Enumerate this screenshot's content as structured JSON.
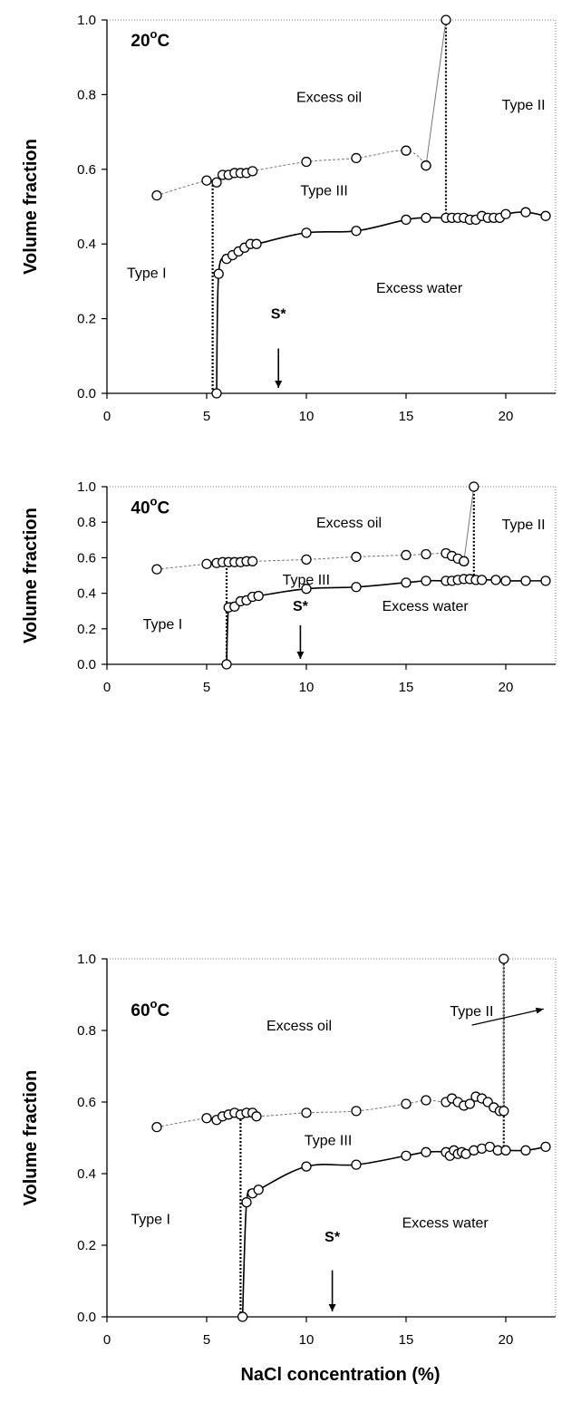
{
  "chart_data": [
    {
      "type": "line",
      "title": "20°C",
      "title_main": "20",
      "title_deg": "o",
      "title_unit": "C",
      "ylabel": "Volume fraction",
      "xlabel": "",
      "xlim": [
        0,
        22.5
      ],
      "ylim": [
        0,
        1.0
      ],
      "xticks": [
        "0",
        "5",
        "10",
        "15",
        "20"
      ],
      "yticks": [
        "0.0",
        "0.2",
        "0.4",
        "0.6",
        "0.8",
        "1.0"
      ],
      "series": [
        {
          "role": "upper",
          "x": [
            2.5,
            5.0,
            5.5,
            5.8,
            6.1,
            6.4,
            6.7,
            7.0,
            7.3,
            10.0,
            12.5,
            15.0,
            16.0
          ],
          "y": [
            0.53,
            0.57,
            0.565,
            0.585,
            0.585,
            0.59,
            0.59,
            0.59,
            0.595,
            0.62,
            0.63,
            0.65,
            0.61
          ]
        },
        {
          "role": "lower",
          "x": [
            5.5,
            5.6,
            6.0,
            6.3,
            6.6,
            6.9,
            7.2,
            7.5,
            10.0,
            12.5,
            15.0,
            16.0,
            17.0,
            17.3,
            17.6,
            17.9,
            18.2,
            18.5,
            18.8,
            19.1,
            19.4,
            19.7,
            20.0,
            21.0,
            22.0
          ],
          "y": [
            0.0,
            0.32,
            0.36,
            0.37,
            0.38,
            0.39,
            0.4,
            0.4,
            0.43,
            0.435,
            0.465,
            0.47,
            0.47,
            0.47,
            0.47,
            0.47,
            0.465,
            0.465,
            0.475,
            0.47,
            0.47,
            0.47,
            0.48,
            0.485,
            0.475
          ]
        },
        {
          "role": "typeII-jump",
          "x": [
            16.0,
            17.0
          ],
          "y": [
            0.61,
            1.0
          ]
        }
      ],
      "boundaries": [
        {
          "x": 5.3,
          "y0": 0.0,
          "y1": 0.57
        },
        {
          "x": 17.0,
          "y0": 0.47,
          "y1": 1.0
        }
      ],
      "labels": {
        "excess_oil": "Excess oil",
        "type_ii": "Type II",
        "type_iii": "Type III",
        "type_i": "Type I",
        "excess_water": "Excess water",
        "s_star": "S*"
      },
      "s_star_x": 8.6
    },
    {
      "type": "line",
      "title": "40°C",
      "title_main": "40",
      "title_deg": "o",
      "title_unit": "C",
      "ylabel": "Volume fraction",
      "xlabel": "",
      "xlim": [
        0,
        22.5
      ],
      "ylim": [
        0,
        1.0
      ],
      "xticks": [
        "0",
        "5",
        "10",
        "15",
        "20"
      ],
      "yticks": [
        "0.0",
        "0.2",
        "0.4",
        "0.6",
        "0.8",
        "1.0"
      ],
      "series": [
        {
          "role": "upper",
          "x": [
            2.5,
            5.0,
            5.5,
            5.8,
            6.1,
            6.4,
            6.7,
            7.0,
            7.3,
            10.0,
            12.5,
            15.0,
            16.0,
            17.0,
            17.3,
            17.6,
            17.9
          ],
          "y": [
            0.535,
            0.565,
            0.57,
            0.575,
            0.575,
            0.575,
            0.575,
            0.58,
            0.58,
            0.59,
            0.605,
            0.615,
            0.62,
            0.625,
            0.61,
            0.595,
            0.58
          ]
        },
        {
          "role": "lower",
          "x": [
            6.0,
            6.1,
            6.4,
            6.7,
            7.0,
            7.3,
            7.6,
            10.0,
            12.5,
            15.0,
            16.0,
            17.0,
            17.3,
            17.6,
            17.9,
            18.2,
            18.5,
            18.8,
            19.5,
            20.0,
            21.0,
            22.0
          ],
          "y": [
            0.0,
            0.32,
            0.325,
            0.355,
            0.36,
            0.38,
            0.385,
            0.425,
            0.435,
            0.46,
            0.47,
            0.47,
            0.47,
            0.475,
            0.48,
            0.48,
            0.475,
            0.475,
            0.475,
            0.47,
            0.47,
            0.47
          ]
        },
        {
          "role": "typeII-jump",
          "x": [
            17.9,
            18.4
          ],
          "y": [
            0.58,
            1.0
          ]
        }
      ],
      "boundaries": [
        {
          "x": 6.0,
          "y0": 0.0,
          "y1": 0.57
        },
        {
          "x": 18.4,
          "y0": 0.48,
          "y1": 1.0
        }
      ],
      "labels": {
        "excess_oil": "Excess oil",
        "type_ii": "Type II",
        "type_iii": "Type III",
        "type_i": "Type I",
        "excess_water": "Excess water",
        "s_star": "S*"
      },
      "s_star_x": 9.7
    },
    {
      "type": "line",
      "title": "60°C",
      "title_main": "60",
      "title_deg": "o",
      "title_unit": "C",
      "ylabel": "Volume fraction",
      "xlabel": "NaCl concentration (%)",
      "xlim": [
        0,
        22.5
      ],
      "ylim": [
        0,
        1.0
      ],
      "xticks": [
        "0",
        "5",
        "10",
        "15",
        "20"
      ],
      "yticks": [
        "0.0",
        "0.2",
        "0.4",
        "0.6",
        "0.8",
        "1.0"
      ],
      "series": [
        {
          "role": "upper",
          "x": [
            2.5,
            5.0,
            5.5,
            5.8,
            6.1,
            6.4,
            6.7,
            7.0,
            7.3,
            7.5,
            10.0,
            12.5,
            15.0,
            16.0,
            17.0,
            17.3,
            17.6,
            17.9,
            18.2,
            18.5,
            18.8,
            19.1,
            19.4,
            19.7
          ],
          "y": [
            0.53,
            0.555,
            0.55,
            0.56,
            0.565,
            0.57,
            0.565,
            0.57,
            0.57,
            0.56,
            0.57,
            0.575,
            0.595,
            0.605,
            0.6,
            0.61,
            0.6,
            0.59,
            0.595,
            0.615,
            0.61,
            0.6,
            0.585,
            0.575
          ]
        },
        {
          "role": "lower",
          "x": [
            6.8,
            7.0,
            7.3,
            7.6,
            10.0,
            12.5,
            15.0,
            16.0,
            17.0,
            17.2,
            17.4,
            17.6,
            17.8,
            18.0,
            18.4,
            18.8,
            19.2,
            19.6,
            20.0,
            21.0,
            22.0
          ],
          "y": [
            0.0,
            0.32,
            0.345,
            0.355,
            0.42,
            0.425,
            0.45,
            0.46,
            0.46,
            0.45,
            0.465,
            0.455,
            0.46,
            0.455,
            0.465,
            0.47,
            0.475,
            0.465,
            0.465,
            0.465,
            0.475
          ]
        },
        {
          "role": "typeII-jump",
          "x": [
            19.9,
            19.9
          ],
          "y": [
            0.575,
            1.0
          ]
        }
      ],
      "boundaries": [
        {
          "x": 6.7,
          "y0": 0.0,
          "y1": 0.57
        },
        {
          "x": 19.9,
          "y0": 0.465,
          "y1": 1.0
        }
      ],
      "labels": {
        "excess_oil": "Excess oil",
        "type_ii": "Type II",
        "type_iii": "Type III",
        "type_i": "Type I",
        "excess_water": "Excess water",
        "s_star": "S*"
      },
      "s_star_x": 11.3
    }
  ]
}
